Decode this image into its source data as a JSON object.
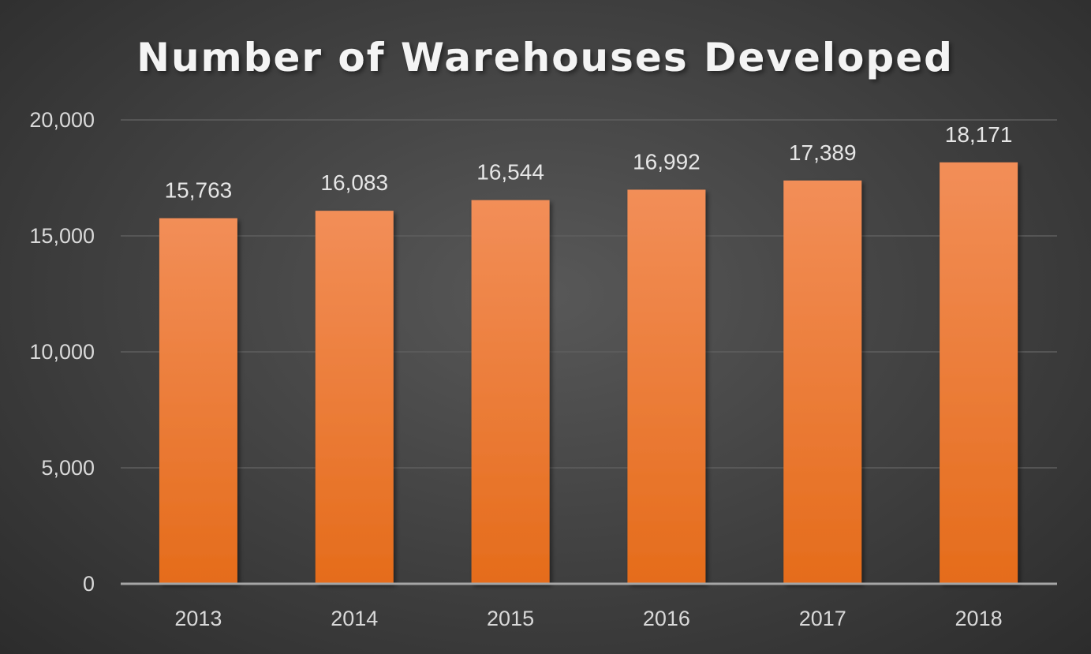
{
  "chart_data": {
    "type": "bar",
    "title": "Number of Warehouses Developed",
    "categories": [
      "2013",
      "2014",
      "2015",
      "2016",
      "2017",
      "2018"
    ],
    "values": [
      15763,
      16083,
      16544,
      16992,
      17389,
      18171
    ],
    "data_labels": [
      "15,763",
      "16,083",
      "16,544",
      "16,992",
      "17,389",
      "18,171"
    ],
    "xlabel": "",
    "ylabel": "",
    "ylim": [
      0,
      20000
    ],
    "yticks": [
      0,
      5000,
      10000,
      15000,
      20000
    ],
    "ytick_labels": [
      "0",
      "5,000",
      "10,000",
      "15,000",
      "20,000"
    ],
    "grid": true,
    "legend": "none",
    "colors": {
      "bar_top": "#f28e58",
      "bar_bottom": "#e56c1b",
      "background": "#444444",
      "grid": "#5e5e5e",
      "axis": "#a6a6a6"
    }
  }
}
